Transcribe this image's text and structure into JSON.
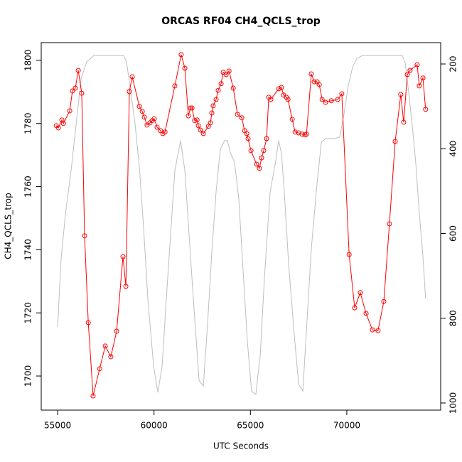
{
  "chart_data": {
    "type": "line",
    "title": "ORCAS RF04 CH4_QCLS_trop",
    "xlabel": "UTC Seconds",
    "ylabel": "CH4_QCLS_trop",
    "xlim": [
      54150,
      74870
    ],
    "xticks": [
      55000,
      60000,
      65000,
      70000
    ],
    "ylim": [
      1689.2,
      1805.6
    ],
    "yticks": [
      1700,
      1720,
      1740,
      1760,
      1780,
      1800
    ],
    "y2lim": [
      1016.8,
      149.7
    ],
    "y2ticks": [
      200,
      400,
      600,
      800,
      1000
    ],
    "series": [
      {
        "color": "#ff0000",
        "markers": true,
        "x": [
          54930,
          55040,
          55220,
          55300,
          55630,
          55770,
          55920,
          56070,
          56250,
          56400,
          56590,
          56840,
          57180,
          57470,
          57760,
          58060,
          58390,
          58540,
          58720,
          58870,
          59240,
          59390,
          59500,
          59640,
          59790,
          59900,
          60010,
          60160,
          60340,
          60460,
          60570,
          61080,
          61410,
          61600,
          61780,
          61890,
          61970,
          62110,
          62230,
          62300,
          62410,
          62560,
          62820,
          62930,
          63000,
          63070,
          63220,
          63330,
          63480,
          63590,
          63740,
          63890,
          64110,
          64330,
          64550,
          64700,
          64810,
          64880,
          65030,
          65320,
          65470,
          65580,
          65690,
          65840,
          65950,
          66060,
          66470,
          66610,
          66720,
          66870,
          66950,
          67170,
          67320,
          67500,
          67680,
          67830,
          67910,
          68160,
          68310,
          68460,
          68570,
          68720,
          68900,
          69200,
          69530,
          69740,
          70120,
          70410,
          70700,
          71000,
          71330,
          71620,
          71920,
          72210,
          72510,
          72800,
          72950,
          73140,
          73280,
          73650,
          73760,
          73950,
          74090
        ],
        "values": [
          1779.3,
          1778.6,
          1781.1,
          1780,
          1784,
          1790.3,
          1791.2,
          1796.8,
          1789.6,
          1744.4,
          1716.9,
          1693.7,
          1702.3,
          1709.5,
          1706.1,
          1714.2,
          1737.8,
          1728.4,
          1790.1,
          1794.8,
          1785.4,
          1783.8,
          1782,
          1779.5,
          1780.2,
          1780.9,
          1781.5,
          1778.8,
          1777.7,
          1776.8,
          1777.3,
          1791.9,
          1801.8,
          1797.5,
          1782.4,
          1784.9,
          1784.9,
          1780.9,
          1781.1,
          1779.3,
          1777.9,
          1776.8,
          1779.1,
          1780.2,
          1783.3,
          1785.6,
          1787.6,
          1790.5,
          1792.6,
          1796.2,
          1795.5,
          1796.6,
          1791.2,
          1782.9,
          1781.8,
          1777.7,
          1776.8,
          1775.2,
          1771.4,
          1767.1,
          1765.8,
          1769.1,
          1771.4,
          1775.2,
          1788.3,
          1787.6,
          1791,
          1791.4,
          1789,
          1788.3,
          1787.6,
          1781.3,
          1777.3,
          1777,
          1776.6,
          1776.4,
          1776.6,
          1795.7,
          1793.2,
          1793.2,
          1792.3,
          1787.6,
          1786.7,
          1787.2,
          1787.6,
          1789.4,
          1738.5,
          1721.6,
          1726.4,
          1719.8,
          1714.6,
          1714.4,
          1723.6,
          1748.2,
          1774.3,
          1789.2,
          1780.4,
          1795.5,
          1796.8,
          1798.6,
          1791.9,
          1794.4,
          1784.5
        ]
      },
      {
        "color": "#bebebe",
        "markers": false,
        "axis": "y2",
        "x": [
          55000,
          55180,
          55410,
          55700,
          56000,
          56220,
          56510,
          56880,
          57540,
          58430,
          58580,
          58800,
          59020,
          59240,
          59460,
          59680,
          59980,
          60200,
          60420,
          60640,
          60860,
          61080,
          61380,
          61600,
          61820,
          62040,
          62340,
          62560,
          62780,
          63000,
          63220,
          63440,
          63660,
          63810,
          63960,
          64180,
          64400,
          64620,
          64840,
          65060,
          65280,
          65510,
          65730,
          66020,
          66320,
          66460,
          66610,
          66760,
          66980,
          67270,
          67500,
          67720,
          67940,
          68160,
          68450,
          68680,
          68900,
          69340,
          69630,
          69860,
          70080,
          70300,
          70520,
          70810,
          71920,
          72880,
          73030,
          73210,
          73390,
          73580,
          73760,
          73950,
          74090
        ],
        "values": [
          821,
          661,
          552,
          452,
          326,
          234,
          195,
          180,
          180,
          180,
          197,
          267,
          343,
          443,
          586,
          754,
          913,
          975,
          913,
          754,
          603,
          452,
          381,
          452,
          603,
          754,
          947,
          960,
          812,
          645,
          502,
          401,
          381,
          381,
          410,
          432,
          519,
          687,
          854,
          972,
          980,
          888,
          703,
          502,
          427,
          381,
          410,
          502,
          670,
          838,
          955,
          972,
          804,
          636,
          485,
          385,
          376,
          376,
          373,
          317,
          250,
          208,
          187,
          180,
          180,
          180,
          197,
          267,
          343,
          435,
          552,
          653,
          754
        ]
      }
    ]
  }
}
